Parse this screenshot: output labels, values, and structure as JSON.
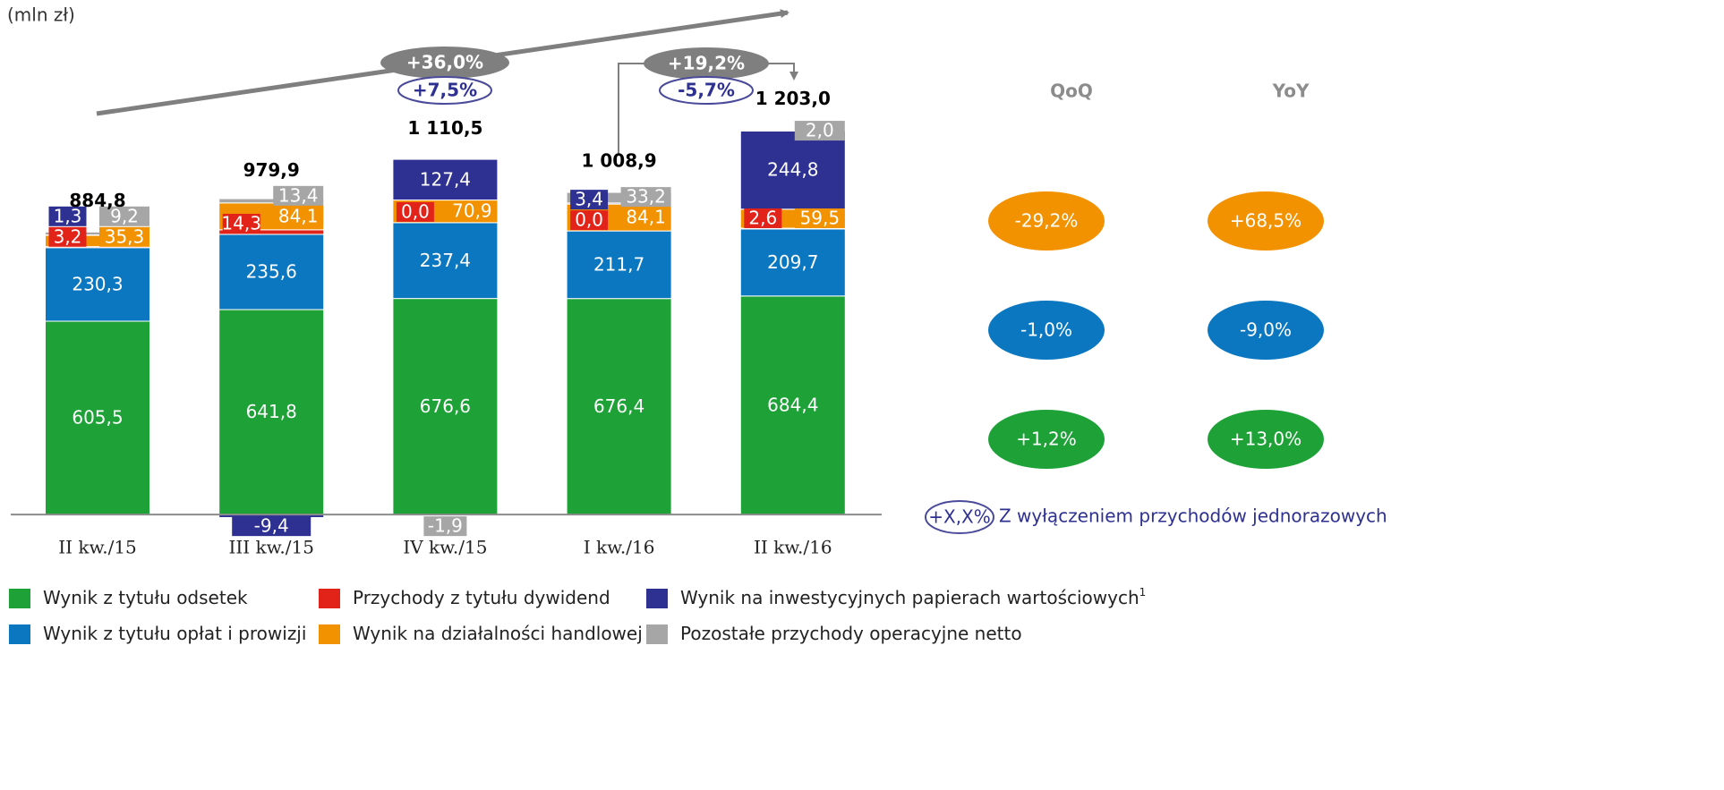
{
  "chart_data": {
    "type": "stacked_bar",
    "unit": "(mln zł)",
    "categories": [
      "II kw./15",
      "III kw./15",
      "IV kw./15",
      "I kw./16",
      "II kw./16"
    ],
    "series": [
      {
        "name": "Wynik z tytułu odsetek",
        "color": "#1ea238",
        "values": [
          605.5,
          641.8,
          676.6,
          676.4,
          684.4
        ],
        "value_labels": [
          "605,5",
          "641,8",
          "676,6",
          "676,4",
          "684,4"
        ]
      },
      {
        "name": "Wynik z tytułu opłat i prowizji",
        "color": "#0a77c0",
        "values": [
          230.3,
          235.6,
          237.4,
          211.7,
          209.7
        ],
        "value_labels": [
          "230,3",
          "235,6",
          "237,4",
          "211,7",
          "209,7"
        ]
      },
      {
        "name": "Przychody z tytułu dywidend",
        "color": "#e2231a",
        "values": [
          3.2,
          14.3,
          0.0,
          0.0,
          2.6
        ],
        "value_labels": [
          "3,2",
          "14,3",
          "0,0",
          "0,0",
          "2,6"
        ]
      },
      {
        "name": "Wynik na działalności handlowej",
        "color": "#f39200",
        "values": [
          35.3,
          84.1,
          70.9,
          84.1,
          59.5
        ],
        "value_labels": [
          "35,3",
          "84,1",
          "70,9",
          "84,1",
          "59,5"
        ]
      },
      {
        "name": "Wynik na inwestycyjnych papierach wartościowych",
        "note": "1",
        "color": "#2e3192",
        "values": [
          1.3,
          -9.4,
          127.4,
          3.4,
          244.8
        ],
        "value_labels": [
          "1,3",
          "-9,4",
          "127,4",
          "3,4",
          "244,8"
        ]
      },
      {
        "name": "Pozostałe przychody operacyjne netto",
        "color": "#a6a6a6",
        "values": [
          9.2,
          13.4,
          -1.9,
          33.2,
          2.0
        ],
        "value_labels": [
          "9,2",
          "13,4",
          "-1,9",
          "33,2",
          "2,0"
        ]
      }
    ],
    "totals": [
      884.8,
      979.9,
      1110.5,
      1008.9,
      1203.0
    ],
    "total_labels": [
      "884,8",
      "979,9",
      "1 110,5",
      "1 008,9",
      "1 203,0"
    ],
    "ylim": [
      -50,
      1600
    ],
    "annotations": {
      "yoy_total": "+36,0%",
      "yoy_adjusted": "+7,5%",
      "qoq_total": "+19,2%",
      "qoq_adjusted": "-5,7%"
    },
    "comparison": {
      "headers": [
        "QoQ",
        "YoY"
      ],
      "rows": [
        {
          "color": "#f39200",
          "values": [
            "-29,2%",
            "+68,5%"
          ]
        },
        {
          "color": "#0a77c0",
          "values": [
            "-1,0%",
            "-9,0%"
          ]
        },
        {
          "color": "#1ea238",
          "values": [
            "+1,2%",
            "+13,0%"
          ]
        }
      ],
      "note_sample": "+X,X%",
      "note": "Z wyłączeniem przychodów jednorazowych"
    }
  }
}
